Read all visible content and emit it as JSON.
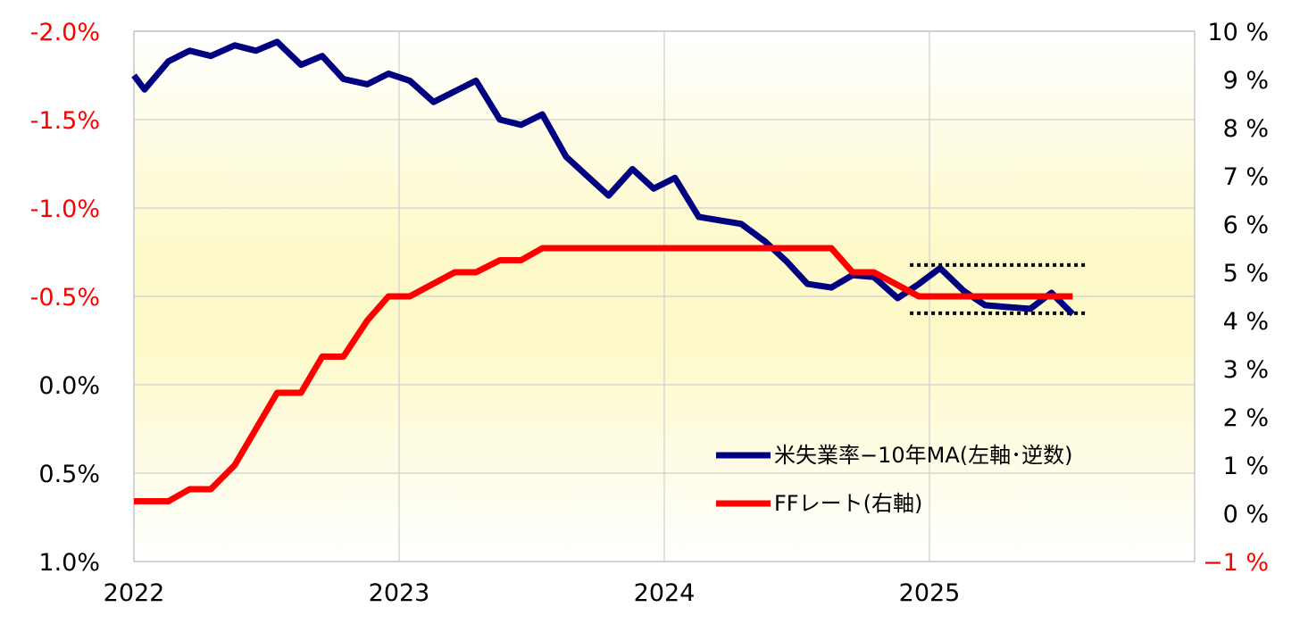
{
  "chart_data": {
    "type": "line",
    "x_ticks": [
      "2022",
      "2023",
      "2024",
      "2025"
    ],
    "left_axis": {
      "ticks": [
        "-2.0%",
        "-1.5%",
        "-1.0%",
        "-0.5%",
        "0.0%",
        "0.5%",
        "1.0%"
      ],
      "values": [
        -2.0,
        -1.5,
        -1.0,
        -0.5,
        0.0,
        0.5,
        1.0
      ],
      "range": [
        -2.0,
        1.0
      ],
      "inverted": true,
      "negative_color": "#ff0000",
      "positive_color": "#000000"
    },
    "right_axis": {
      "ticks": [
        "10 %",
        "9 %",
        "8 %",
        "7 %",
        "6 %",
        "5 %",
        "4 %",
        "3 %",
        "2 %",
        "1 %",
        "0 %",
        "−1 %"
      ],
      "values": [
        10,
        9,
        8,
        7,
        6,
        5,
        4,
        3,
        2,
        1,
        0,
        -1
      ],
      "range": [
        -1,
        10
      ],
      "negative_color": "#ff0000",
      "positive_color": "#000000"
    },
    "x_range": [
      2022.0,
      2026.0
    ],
    "series": [
      {
        "name": "米失業率−10年MA(左軸･逆数)",
        "axis": "left",
        "color": "#000080",
        "points": [
          [
            2022.0,
            -1.75
          ],
          [
            2022.04,
            -1.67
          ],
          [
            2022.13,
            -1.83
          ],
          [
            2022.21,
            -1.89
          ],
          [
            2022.29,
            -1.86
          ],
          [
            2022.38,
            -1.92
          ],
          [
            2022.46,
            -1.89
          ],
          [
            2022.54,
            -1.94
          ],
          [
            2022.63,
            -1.81
          ],
          [
            2022.71,
            -1.86
          ],
          [
            2022.79,
            -1.73
          ],
          [
            2022.88,
            -1.7
          ],
          [
            2022.96,
            -1.76
          ],
          [
            2023.04,
            -1.72
          ],
          [
            2023.13,
            -1.6
          ],
          [
            2023.21,
            -1.66
          ],
          [
            2023.29,
            -1.72
          ],
          [
            2023.38,
            -1.5
          ],
          [
            2023.46,
            -1.47
          ],
          [
            2023.54,
            -1.53
          ],
          [
            2023.63,
            -1.29
          ],
          [
            2023.71,
            -1.18
          ],
          [
            2023.79,
            -1.07
          ],
          [
            2023.88,
            -1.22
          ],
          [
            2023.96,
            -1.11
          ],
          [
            2024.04,
            -1.17
          ],
          [
            2024.13,
            -0.95
          ],
          [
            2024.21,
            -0.93
          ],
          [
            2024.29,
            -0.91
          ],
          [
            2024.38,
            -0.81
          ],
          [
            2024.46,
            -0.7
          ],
          [
            2024.54,
            -0.57
          ],
          [
            2024.63,
            -0.55
          ],
          [
            2024.71,
            -0.62
          ],
          [
            2024.79,
            -0.61
          ],
          [
            2024.88,
            -0.49
          ],
          [
            2024.96,
            -0.57
          ],
          [
            2025.04,
            -0.66
          ],
          [
            2025.13,
            -0.53
          ],
          [
            2025.21,
            -0.45
          ],
          [
            2025.29,
            -0.44
          ],
          [
            2025.38,
            -0.43
          ],
          [
            2025.46,
            -0.52
          ],
          [
            2025.54,
            -0.4
          ]
        ]
      },
      {
        "name": "FFレート(右軸)",
        "axis": "right",
        "color": "#ff0000",
        "points": [
          [
            2022.0,
            0.25
          ],
          [
            2022.13,
            0.25
          ],
          [
            2022.21,
            0.5
          ],
          [
            2022.29,
            0.5
          ],
          [
            2022.38,
            1.0
          ],
          [
            2022.54,
            2.5
          ],
          [
            2022.63,
            2.5
          ],
          [
            2022.71,
            3.25
          ],
          [
            2022.79,
            3.25
          ],
          [
            2022.88,
            4.0
          ],
          [
            2022.96,
            4.5
          ],
          [
            2023.04,
            4.5
          ],
          [
            2023.21,
            5.0
          ],
          [
            2023.29,
            5.0
          ],
          [
            2023.38,
            5.25
          ],
          [
            2023.46,
            5.25
          ],
          [
            2023.54,
            5.5
          ],
          [
            2024.63,
            5.5
          ],
          [
            2024.71,
            5.0
          ],
          [
            2024.79,
            5.0
          ],
          [
            2024.96,
            4.5
          ],
          [
            2025.54,
            4.5
          ]
        ]
      }
    ],
    "annotations": [
      {
        "type": "dotted-hline",
        "axis": "right",
        "value": 5.15,
        "x_from": 2024.96,
        "x_to": 2025.54
      },
      {
        "type": "dotted-hline",
        "axis": "right",
        "value": 4.15,
        "x_from": 2024.96,
        "x_to": 2025.54
      }
    ],
    "legend_position": "bottom-right",
    "grid": {
      "vertical": true,
      "horizontal": true
    },
    "background": "yellow gradient",
    "title": "",
    "xlabel": "",
    "ylabel": ""
  }
}
